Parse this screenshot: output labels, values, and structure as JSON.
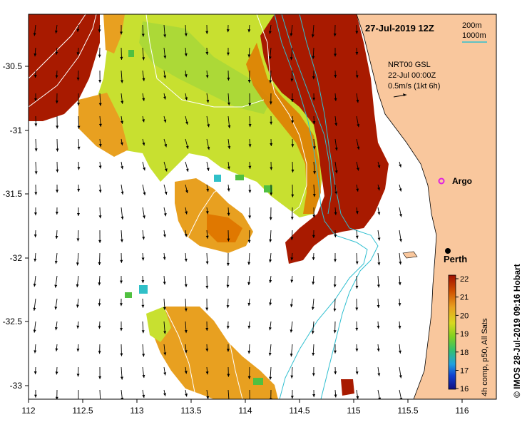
{
  "title": "27-Jul-2019 12Z",
  "legend": {
    "contour_200": "200m",
    "contour_1000": "1000m",
    "contour_200_color": "#2fbfd0",
    "contour_1000_color": "#ffffff"
  },
  "current_info": {
    "line1": "NRT00 GSL",
    "line2": "22-Jul 00:00Z",
    "line3": "0.5m/s (1kt 6h)"
  },
  "places": {
    "argo": "Argo",
    "perth": "Perth"
  },
  "colorbar": {
    "ticks": [
      "22",
      "21",
      "20",
      "19",
      "18",
      "17",
      "16"
    ],
    "label": "4h comp, p50, All Sats"
  },
  "credit": "© IMOS 28-Jul-2019 09:16 Hobart",
  "axes": {
    "x_ticks": [
      "112",
      "112.5",
      "113",
      "113.5",
      "114",
      "114.5",
      "115",
      "115.5",
      "116"
    ],
    "y_ticks": [
      "-30.5",
      "-31",
      "-31.5",
      "-32",
      "-32.5",
      "-33"
    ]
  },
  "colors": {
    "land": "#f9c79d",
    "hot": "#a81a00",
    "warm_orange": "#e07800",
    "orange": "#e8a020",
    "yellow": "#d9d820",
    "yellow_green": "#c8e830",
    "green": "#50c040",
    "cyan": "#30c0c8"
  }
}
